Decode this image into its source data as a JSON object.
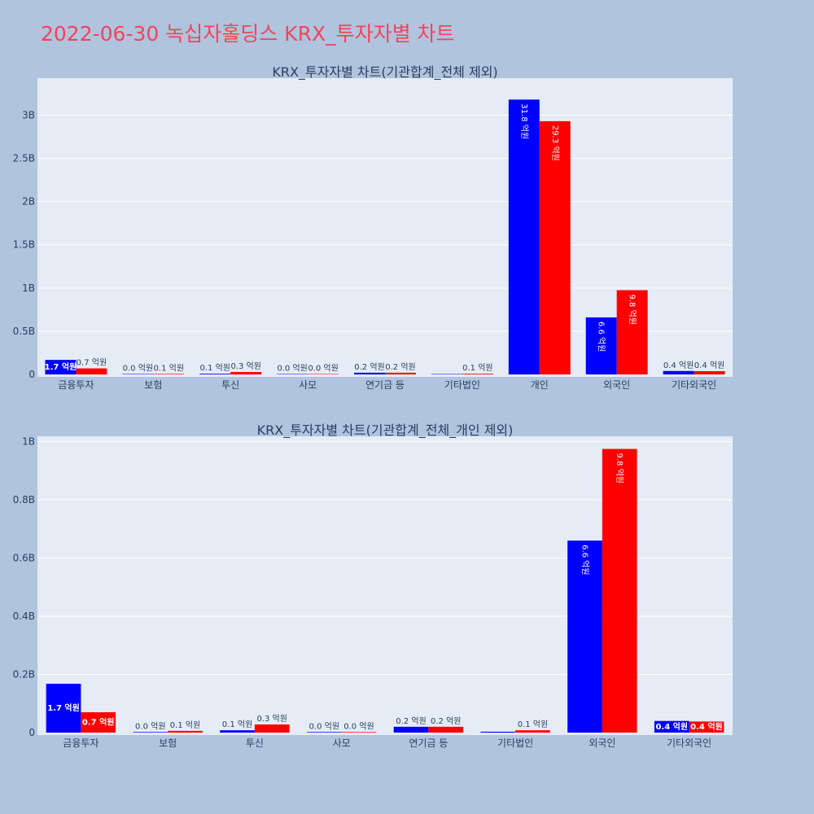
{
  "title": "2022-06-30 녹십자홀딩스 KRX_투자자별 차트",
  "colors": {
    "page_bg": "#b0c4de",
    "plot_bg": "#e5ecf6",
    "series_a": "#0000ff",
    "series_b": "#ff0000",
    "title": "#f0455a"
  },
  "chart_data": [
    {
      "type": "bar",
      "title": "KRX_투자자별 차트(기관합계_전체 제외)",
      "categories": [
        "금융투자",
        "보험",
        "투신",
        "사모",
        "연기금 등",
        "기타법인",
        "개인",
        "외국인",
        "기타외국인"
      ],
      "series": [
        {
          "values": [
            168000000,
            2000000,
            8000000,
            2000000,
            20000000,
            3000000,
            3180000000,
            660000000,
            40000000
          ],
          "labels": [
            "1.7 억원",
            "0.0 억원",
            "0.1 억원",
            "0.0 억원",
            "0.2 억원",
            "",
            "31.8 억원",
            "6.6 억원",
            "0.4 억원"
          ]
        },
        {
          "values": [
            70000000,
            6000000,
            28000000,
            2000000,
            20000000,
            8000000,
            2930000000,
            975000000,
            38000000
          ],
          "labels": [
            "0.7 억원",
            "0.1 억원",
            "0.3 억원",
            "0.0 억원",
            "0.2 억원",
            "0.1 억원",
            "29.3 억원",
            "9.8 억원",
            "0.4 억원"
          ]
        }
      ],
      "ylim": [
        0,
        3400000000
      ],
      "yticks": [
        0,
        500000000,
        1000000000,
        1500000000,
        2000000000,
        2500000000,
        3000000000
      ],
      "ytick_labels": [
        "0",
        "0.5B",
        "1B",
        "1.5B",
        "2B",
        "2.5B",
        "3B"
      ],
      "grid": true
    },
    {
      "type": "bar",
      "title": "KRX_투자자별 차트(기관합계_전체_개인 제외)",
      "categories": [
        "금융투자",
        "보험",
        "투신",
        "사모",
        "연기금 등",
        "기타법인",
        "외국인",
        "기타외국인"
      ],
      "series": [
        {
          "values": [
            168000000,
            2000000,
            8000000,
            2000000,
            20000000,
            3000000,
            660000000,
            40000000
          ],
          "labels": [
            "1.7 억원",
            "0.0 억원",
            "0.1 억원",
            "0.0 억원",
            "0.2 억원",
            "",
            "6.6 억원",
            "0.4 억원"
          ]
        },
        {
          "values": [
            70000000,
            6000000,
            28000000,
            2000000,
            20000000,
            8000000,
            975000000,
            38000000
          ],
          "labels": [
            "0.7 억원",
            "0.1 억원",
            "0.3 억원",
            "0.0 억원",
            "0.2 억원",
            "0.1 억원",
            "9.8 억원",
            "0.4 억원"
          ]
        }
      ],
      "ylim": [
        0,
        1010000000
      ],
      "yticks": [
        0,
        200000000,
        400000000,
        600000000,
        800000000,
        1000000000
      ],
      "ytick_labels": [
        "0",
        "0.2B",
        "0.4B",
        "0.6B",
        "0.8B",
        "1B"
      ],
      "grid": true
    }
  ]
}
